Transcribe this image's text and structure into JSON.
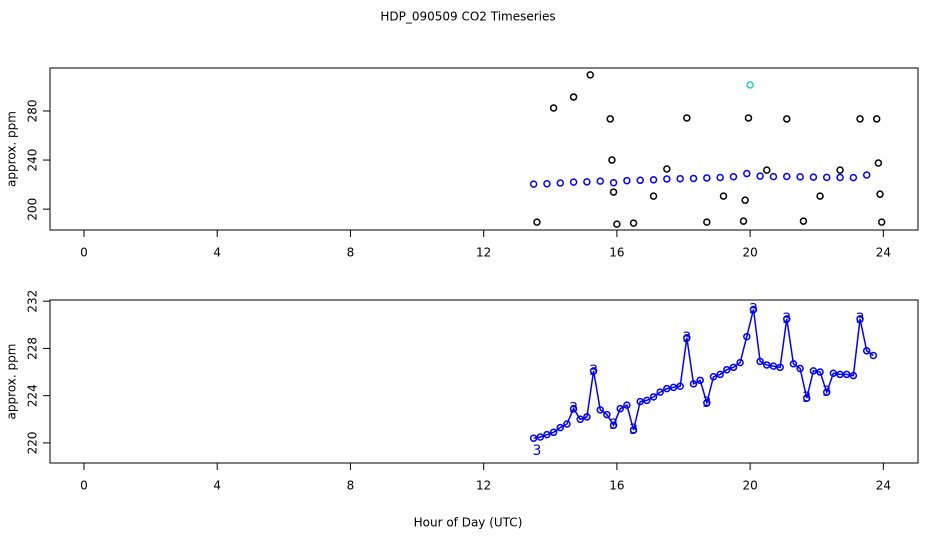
{
  "chart_data": [
    {
      "type": "scatter",
      "title": "HDP_090509  CO2 Timeseries",
      "y_label": "approx. ppm",
      "xlim": [
        -1.02,
        25.04
      ],
      "xticks": [
        0,
        4,
        8,
        12,
        16,
        20,
        24
      ],
      "ylim": [
        183,
        315
      ],
      "yticks": [
        200,
        240,
        280
      ],
      "series": [
        {
          "color": "#0000ff",
          "x": [
            13.5,
            13.9,
            14.3,
            14.7,
            15.1,
            15.5,
            15.9,
            16.3,
            16.7,
            17.1,
            17.5,
            17.9,
            18.3,
            18.7,
            19.1,
            19.5,
            19.9,
            20.3,
            20.7,
            21.1,
            21.5,
            21.9,
            22.3,
            22.7,
            23.1,
            23.5
          ],
          "values": [
            220.4,
            220.7,
            221.3,
            222.0,
            222.2,
            222.8,
            221.5,
            223.2,
            223.5,
            223.9,
            224.6,
            224.8,
            225.0,
            225.4,
            225.8,
            226.4,
            229.0,
            226.9,
            226.5,
            226.6,
            226.3,
            226.1,
            225.9,
            225.8,
            225.7,
            227.8
          ]
        },
        {
          "color": "#000000",
          "x": [
            13.6,
            14.1,
            14.7,
            15.2,
            15.8,
            15.85,
            15.9,
            16.0,
            16.5,
            17.1,
            17.5,
            18.1,
            18.7,
            19.2,
            19.8,
            19.85,
            19.95,
            20.5,
            21.1,
            21.6,
            22.1,
            22.7,
            23.3,
            23.8,
            23.85,
            23.9,
            23.95
          ],
          "values": [
            189.4,
            282.4,
            291.4,
            309.4,
            273.5,
            240.0,
            213.9,
            187.8,
            188.6,
            210.6,
            232.7,
            274.3,
            189.4,
            210.6,
            190.2,
            207.3,
            274.3,
            231.8,
            273.5,
            190.2,
            210.6,
            231.8,
            273.5,
            273.5,
            237.6,
            212.2,
            189.4
          ]
        },
        {
          "color": "#33cccc",
          "x": [
            20.0
          ],
          "values": [
            301.2
          ]
        }
      ]
    },
    {
      "type": "line",
      "y_label": "approx. ppm",
      "x_label": "Hour of Day (UTC)",
      "xlim": [
        -1.02,
        25.04
      ],
      "xticks": [
        0,
        4,
        8,
        12,
        16,
        20,
        24
      ],
      "ylim": [
        218.3,
        232.1
      ],
      "yticks": [
        220,
        224,
        228,
        232
      ],
      "series": [
        {
          "color": "#0000ff",
          "x": [
            13.5,
            13.7,
            13.9,
            14.1,
            14.3,
            14.5,
            14.7,
            14.9,
            15.1,
            15.3,
            15.5,
            15.7,
            15.9,
            16.1,
            16.3,
            16.5,
            16.7,
            16.9,
            17.1,
            17.3,
            17.5,
            17.7,
            17.9,
            18.1,
            18.3,
            18.5,
            18.7,
            18.9,
            19.1,
            19.3,
            19.5,
            19.7,
            19.9,
            20.1,
            20.3,
            20.5,
            20.7,
            20.9,
            21.1,
            21.3,
            21.5,
            21.7,
            21.9,
            22.1,
            22.3,
            22.5,
            22.7,
            22.9,
            23.1,
            23.3,
            23.5,
            23.7
          ],
          "values": [
            220.4,
            220.5,
            220.7,
            220.9,
            221.3,
            221.6,
            222.9,
            222.0,
            222.2,
            226.1,
            222.8,
            222.4,
            221.5,
            222.9,
            223.2,
            221.1,
            223.5,
            223.6,
            223.9,
            224.3,
            224.6,
            224.7,
            224.8,
            228.9,
            225.0,
            225.3,
            223.4,
            225.6,
            225.8,
            226.2,
            226.4,
            226.8,
            229.0,
            231.3,
            226.9,
            226.6,
            226.5,
            226.4,
            230.5,
            226.7,
            226.3,
            223.8,
            226.1,
            226.0,
            224.3,
            225.9,
            225.8,
            225.8,
            225.7,
            230.5,
            227.8,
            227.4
          ]
        },
        {
          "color": "#0000cc",
          "marker": "3",
          "x": [
            13.6,
            14.7,
            15.3,
            15.9,
            16.5,
            18.1,
            18.7,
            20.1,
            21.1,
            21.7,
            22.3,
            23.3
          ],
          "values": [
            219.3,
            222.9,
            226.1,
            221.5,
            221.1,
            228.9,
            223.4,
            231.3,
            230.5,
            223.8,
            224.3,
            230.5
          ]
        }
      ]
    }
  ]
}
